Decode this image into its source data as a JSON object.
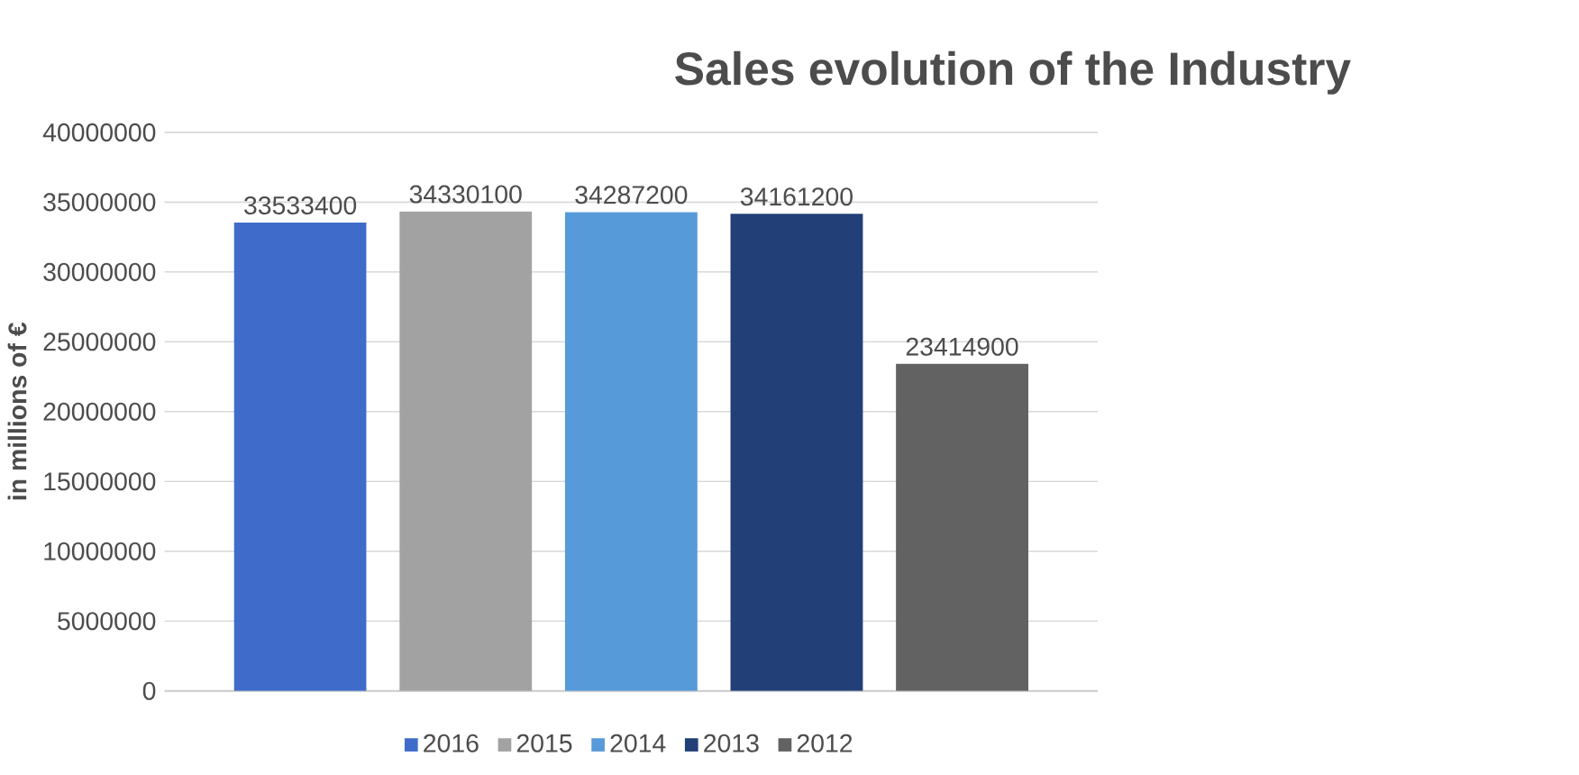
{
  "chart_data": {
    "type": "bar",
    "title": "Sales evolution of the Industry",
    "ylabel": "in millions of €",
    "categories": [
      null
    ],
    "series": [
      {
        "name": "2016",
        "color": "#3f6ccb",
        "values": [
          33533400
        ]
      },
      {
        "name": "2015",
        "color": "#a2a2a2",
        "values": [
          34330100
        ]
      },
      {
        "name": "2014",
        "color": "#579ad9",
        "values": [
          34287200
        ]
      },
      {
        "name": "2013",
        "color": "#223f78",
        "values": [
          34161200
        ]
      },
      {
        "name": "2012",
        "color": "#626262",
        "values": [
          23414900
        ]
      }
    ],
    "ylim": [
      0,
      40000000
    ],
    "yticks": [
      0,
      5000000,
      10000000,
      15000000,
      20000000,
      25000000,
      30000000,
      35000000,
      40000000
    ],
    "grid": "y",
    "legend": "bottom",
    "data_labels": true
  }
}
